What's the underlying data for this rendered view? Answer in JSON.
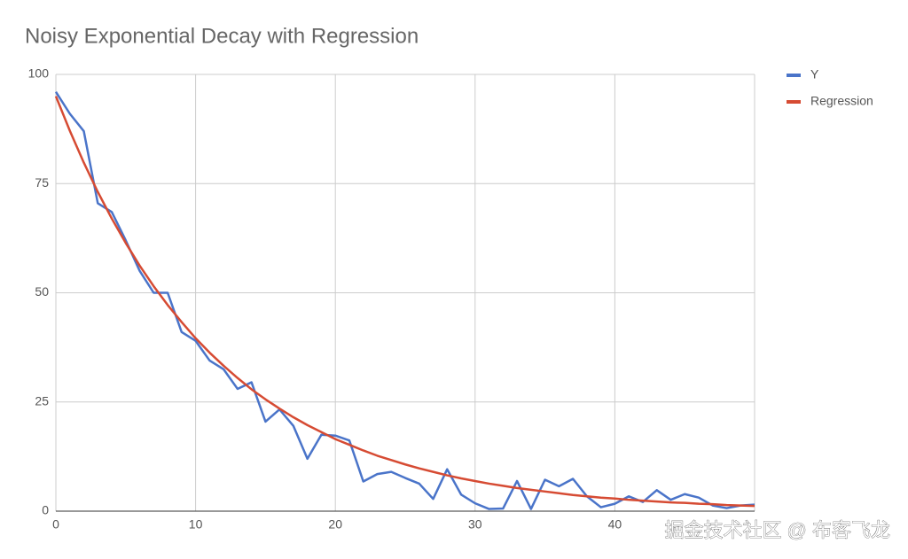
{
  "chart_data": {
    "type": "line",
    "title": "Noisy Exponential Decay with Regression",
    "x": [
      0,
      1,
      2,
      3,
      4,
      5,
      6,
      7,
      8,
      9,
      10,
      11,
      12,
      13,
      14,
      15,
      16,
      17,
      18,
      19,
      20,
      21,
      22,
      23,
      24,
      25,
      26,
      27,
      28,
      29,
      30,
      31,
      32,
      33,
      34,
      35,
      36,
      37,
      38,
      39,
      40,
      41,
      42,
      43,
      44,
      45,
      46,
      47,
      48,
      49,
      50
    ],
    "series": [
      {
        "name": "Y",
        "color": "#4a74c9",
        "values": [
          96,
          91,
          87,
          70.5,
          68.5,
          62,
          55,
          50,
          50,
          41,
          39,
          34.5,
          32.5,
          28,
          29.5,
          20.5,
          23.3,
          19.5,
          12,
          17.5,
          17.3,
          16.2,
          6.8,
          8.5,
          9,
          7.6,
          6.3,
          2.8,
          9.6,
          3.8,
          1.8,
          0.5,
          0.6,
          6.9,
          0.5,
          7.2,
          5.7,
          7.4,
          3.4,
          0.9,
          1.7,
          3.4,
          2.1,
          4.8,
          2.6,
          3.9,
          3.1,
          1.3,
          0.7,
          1.3,
          1.5
        ]
      },
      {
        "name": "Regression",
        "color": "#d64b33",
        "values": [
          95,
          87.1,
          79.8,
          73.1,
          67,
          61.4,
          56.2,
          51.5,
          47.2,
          43.3,
          39.6,
          36.3,
          33.3,
          30.5,
          27.9,
          25.6,
          23.5,
          21.5,
          19.7,
          18.1,
          16.5,
          15.2,
          13.9,
          12.7,
          11.7,
          10.7,
          9.8,
          9,
          8.2,
          7.5,
          6.9,
          6.3,
          5.8,
          5.3,
          4.9,
          4.5,
          4.1,
          3.7,
          3.4,
          3.1,
          2.9,
          2.6,
          2.4,
          2.2,
          2,
          1.9,
          1.7,
          1.6,
          1.4,
          1.3,
          1.2
        ]
      }
    ],
    "xlim": [
      0,
      50
    ],
    "xticks": [
      0,
      10,
      20,
      30,
      40
    ],
    "ylim": [
      0,
      100
    ],
    "yticks": [
      0,
      25,
      50,
      75,
      100
    ],
    "grid": true,
    "legend": "right"
  },
  "watermark": "掘金技术社区 @ 布客飞龙"
}
